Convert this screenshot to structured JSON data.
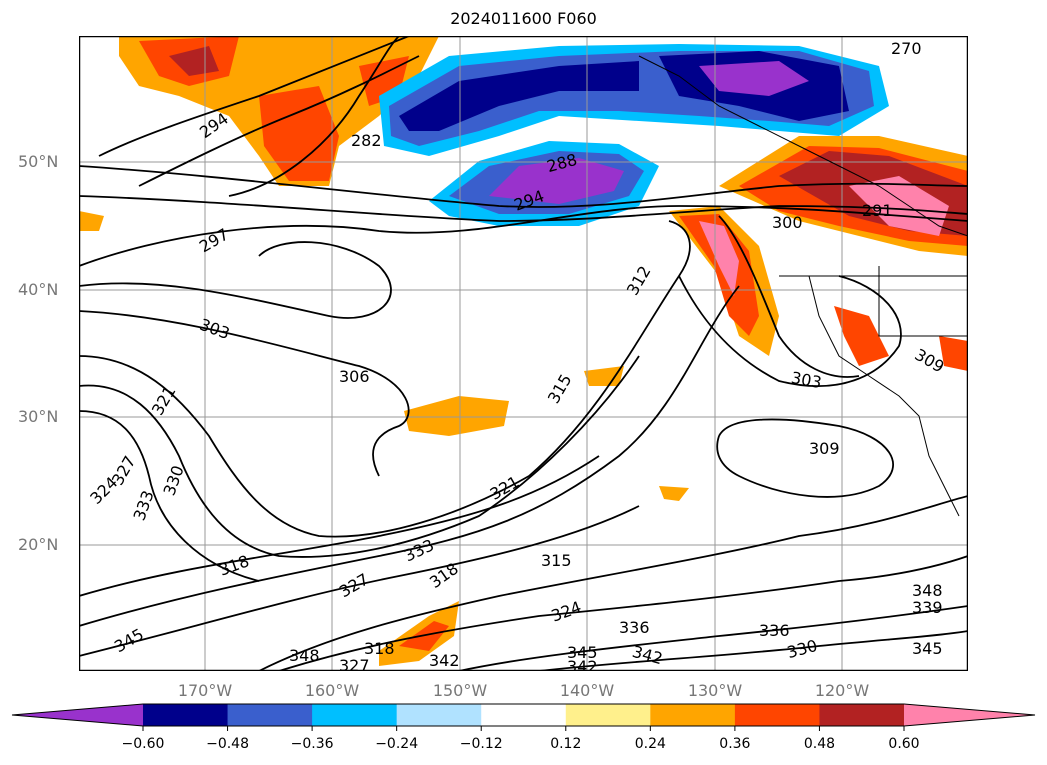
{
  "title": "2024011600 F060",
  "lat_labels": [
    "50°N",
    "40°N",
    "30°N",
    "20°N"
  ],
  "lon_labels": [
    "170°W",
    "160°W",
    "150°W",
    "140°W",
    "130°W",
    "120°W"
  ],
  "colorbar": {
    "colors": [
      "#9932cc",
      "#00008b",
      "#3a5fcd",
      "#00bfff",
      "#b0e2ff",
      "#ffffff",
      "#fff08c",
      "#ffa500",
      "#ff4500",
      "#b22222",
      "#ff82ab"
    ],
    "extend_min_color": "#9932cc",
    "extend_max_color": "#ff82ab",
    "tick_labels": [
      "-0.60",
      "-0.48",
      "-0.36",
      "-0.24",
      "-0.12",
      "0.12",
      "0.24",
      "0.36",
      "0.48",
      "0.60"
    ]
  },
  "contour_labels": [
    "270",
    "282",
    "294",
    "288",
    "294",
    "297",
    "300",
    "291",
    "303",
    "306",
    "312",
    "315",
    "309",
    "303",
    "309",
    "321",
    "324",
    "327",
    "330",
    "333",
    "321",
    "318",
    "333",
    "318",
    "315",
    "327",
    "324",
    "336",
    "342",
    "345",
    "348",
    "339",
    "345",
    "342",
    "330",
    "345",
    "342",
    "348",
    "318",
    "327",
    "336"
  ]
}
